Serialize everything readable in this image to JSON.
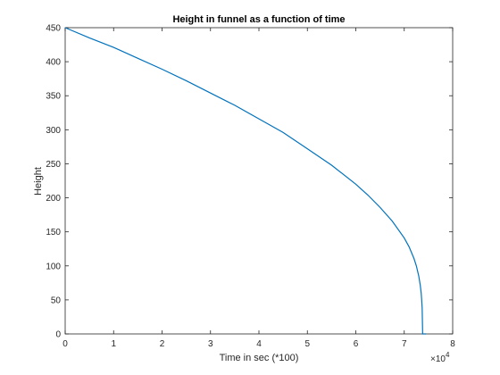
{
  "chart_data": {
    "type": "line",
    "title": "Height in funnel as a function of time",
    "xlabel": "Time in sec (*100)",
    "ylabel": "Height",
    "x_exponent_base": "×10",
    "x_exponent_power": "4",
    "xlim": [
      0,
      8
    ],
    "ylim": [
      0,
      450
    ],
    "xticks": [
      0,
      1,
      2,
      3,
      4,
      5,
      6,
      7,
      8
    ],
    "yticks": [
      0,
      50,
      100,
      150,
      200,
      250,
      300,
      350,
      400,
      450
    ],
    "x_unit_multiplier": 10000,
    "grid": false,
    "series": [
      {
        "color": "#0072BD",
        "x": [
          0,
          5000,
          10000,
          15000,
          20000,
          25000,
          30000,
          35000,
          40000,
          45000,
          50000,
          55000,
          60000,
          62500,
          65000,
          67500,
          70000,
          71000,
          72000,
          72500,
          73000,
          73300,
          73500,
          73600,
          73700,
          73800,
          74000,
          74300,
          74500
        ],
        "y": [
          450,
          435,
          421,
          405,
          389,
          372,
          354,
          336,
          316,
          296,
          272,
          248,
          220,
          204,
          186,
          166,
          141,
          128,
          111,
          100,
          85,
          72,
          60,
          50,
          38,
          0,
          0,
          0,
          0
        ]
      }
    ]
  }
}
